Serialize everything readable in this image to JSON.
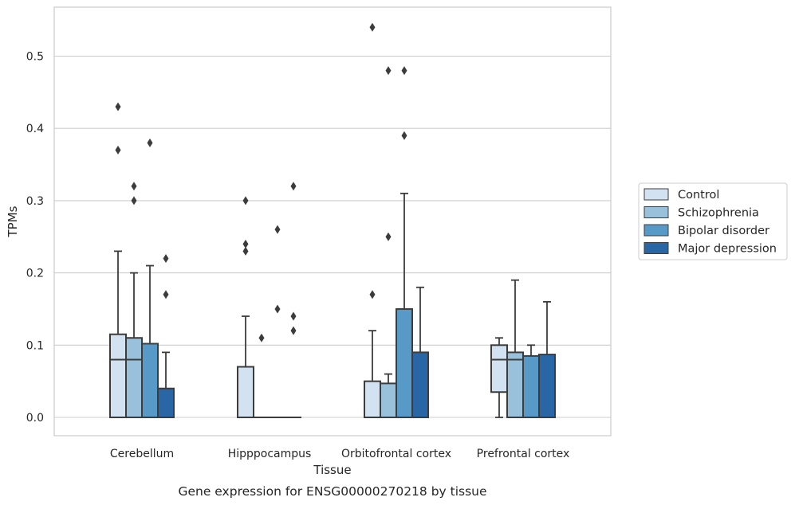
{
  "chart_data": {
    "type": "box",
    "xlabel": "Tissue",
    "ylabel": "TPMs",
    "caption": "Gene expression for ENSG00000270218 by tissue",
    "ylim": [
      -0.026,
      0.57
    ],
    "yticks": [
      "0.0",
      "0.1",
      "0.2",
      "0.3",
      "0.4",
      "0.5"
    ],
    "grid": "horizontal",
    "legend_position": "right",
    "categories": [
      "Cerebellum",
      "Hipppocampus",
      "Orbitofrontal cortex",
      "Prefrontal cortex"
    ],
    "series": [
      {
        "name": "Control",
        "color": "#d2e2f0",
        "boxes": [
          {
            "whislo": 0.0,
            "q1": 0.0,
            "med": 0.08,
            "q3": 0.115,
            "whishi": 0.23,
            "fliers": [
              0.37,
              0.43
            ]
          },
          {
            "whislo": 0.0,
            "q1": 0.0,
            "med": 0.0,
            "q3": 0.07,
            "whishi": 0.14,
            "fliers": [
              0.23,
              0.24,
              0.3
            ]
          },
          {
            "whislo": 0.0,
            "q1": 0.0,
            "med": 0.0,
            "q3": 0.05,
            "whishi": 0.12,
            "fliers": [
              0.17,
              0.54
            ]
          },
          {
            "whislo": 0.0,
            "q1": 0.035,
            "med": 0.08,
            "q3": 0.1,
            "whishi": 0.11,
            "fliers": []
          }
        ]
      },
      {
        "name": "Schizophrenia",
        "color": "#9ac1dc",
        "boxes": [
          {
            "whislo": 0.0,
            "q1": 0.0,
            "med": 0.08,
            "q3": 0.11,
            "whishi": 0.2,
            "fliers": [
              0.3,
              0.32
            ]
          },
          {
            "whislo": 0.0,
            "q1": 0.0,
            "med": 0.0,
            "q3": 0.0,
            "whishi": 0.0,
            "fliers": [
              0.11
            ]
          },
          {
            "whislo": 0.0,
            "q1": 0.0,
            "med": 0.0,
            "q3": 0.047,
            "whishi": 0.06,
            "fliers": [
              0.25,
              0.48
            ]
          },
          {
            "whislo": 0.0,
            "q1": 0.0,
            "med": 0.08,
            "q3": 0.09,
            "whishi": 0.19,
            "fliers": []
          }
        ]
      },
      {
        "name": "Bipolar disorder",
        "color": "#5799c7",
        "boxes": [
          {
            "whislo": 0.0,
            "q1": 0.0,
            "med": 0.0,
            "q3": 0.102,
            "whishi": 0.21,
            "fliers": [
              0.38
            ]
          },
          {
            "whislo": 0.0,
            "q1": 0.0,
            "med": 0.0,
            "q3": 0.0,
            "whishi": 0.0,
            "fliers": [
              0.15,
              0.26
            ]
          },
          {
            "whislo": 0.0,
            "q1": 0.0,
            "med": 0.0,
            "q3": 0.15,
            "whishi": 0.31,
            "fliers": [
              0.39,
              0.48
            ]
          },
          {
            "whislo": 0.0,
            "q1": 0.0,
            "med": 0.0,
            "q3": 0.085,
            "whishi": 0.1,
            "fliers": []
          }
        ]
      },
      {
        "name": "Major depression",
        "color": "#2866a6",
        "boxes": [
          {
            "whislo": 0.0,
            "q1": 0.0,
            "med": 0.0,
            "q3": 0.04,
            "whishi": 0.09,
            "fliers": [
              0.17,
              0.22
            ]
          },
          {
            "whislo": 0.0,
            "q1": 0.0,
            "med": 0.0,
            "q3": 0.0,
            "whishi": 0.0,
            "fliers": [
              0.12,
              0.14,
              0.32
            ]
          },
          {
            "whislo": 0.0,
            "q1": 0.0,
            "med": 0.0,
            "q3": 0.09,
            "whishi": 0.18,
            "fliers": []
          },
          {
            "whislo": 0.0,
            "q1": 0.0,
            "med": 0.0,
            "q3": 0.087,
            "whishi": 0.16,
            "fliers": []
          }
        ]
      }
    ]
  }
}
